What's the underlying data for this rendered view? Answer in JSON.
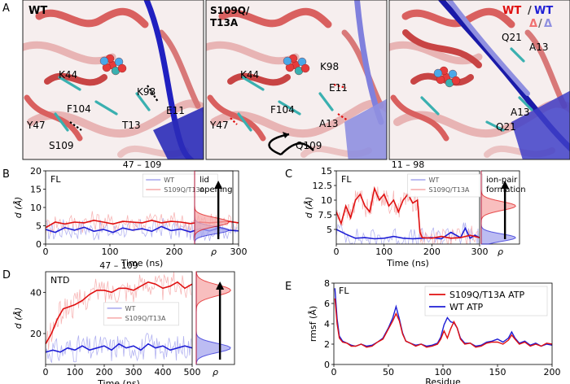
{
  "panel_letters": [
    "A",
    "B",
    "C",
    "D",
    "E"
  ],
  "panel_a": {
    "views": [
      {
        "title": "WT",
        "labels": [
          "K44",
          "K98",
          "E11",
          "F104",
          "Y47",
          "T13",
          "S109"
        ]
      },
      {
        "title_lines": [
          "S109Q/",
          "T13A"
        ],
        "labels": [
          "K44",
          "K98",
          "E11",
          "F104",
          "Y47",
          "A13",
          "Q109"
        ]
      },
      {
        "legend_top": [
          "WT",
          "/",
          "WT"
        ],
        "legend_bottom": [
          "Δ",
          "/",
          "Δ"
        ],
        "labels": [
          "Q21",
          "A13",
          "A13",
          "Q21"
        ]
      }
    ]
  },
  "colors": {
    "wt": "#1f1fd6",
    "wt_light": "#a6a6ee",
    "mut": "#e01010",
    "mut_light": "#f6a9a9",
    "protein_red": "#d9605f",
    "protein_blue": "#3b3bc4",
    "stick_cyan": "#3ab0b0"
  },
  "chart_data": [
    {
      "id": "B",
      "type": "line",
      "title": "47 – 109",
      "inset": "FL",
      "xlabel": "Time (ns)",
      "ylabel": "d (Å)",
      "xlim": [
        0,
        300
      ],
      "ylim": [
        0,
        20
      ],
      "xticks": [
        0,
        100,
        200,
        300
      ],
      "yticks": [
        0,
        5,
        10,
        15,
        20
      ],
      "legend": "top-center",
      "density_label": "ρ",
      "annotation": [
        "lid",
        "opening"
      ],
      "series": [
        {
          "name": "WT",
          "color": "#1f1fd6",
          "x": [
            0,
            15,
            30,
            45,
            60,
            75,
            90,
            105,
            120,
            135,
            150,
            165,
            180,
            195,
            210,
            225,
            240,
            255,
            270,
            285,
            300
          ],
          "y": [
            4,
            3.2,
            4.5,
            3.8,
            4.6,
            3.5,
            4,
            3.2,
            4.4,
            3.8,
            4.2,
            3.5,
            4.8,
            3.7,
            4.1,
            3.3,
            4.2,
            3.6,
            4.4,
            3.8,
            3.6
          ]
        },
        {
          "name": "S109Q/T13A",
          "color": "#e01010",
          "x": [
            0,
            15,
            30,
            45,
            60,
            75,
            90,
            105,
            120,
            135,
            150,
            165,
            180,
            195,
            210,
            225,
            240,
            255,
            270,
            285,
            300
          ],
          "y": [
            4.5,
            6,
            5.5,
            6,
            5.8,
            6.5,
            6,
            5.5,
            6.2,
            6,
            5.8,
            6.5,
            5.8,
            6.2,
            6,
            5.6,
            6,
            5.8,
            6,
            6.2,
            5.8
          ]
        }
      ]
    },
    {
      "id": "C",
      "type": "line",
      "title": "11 – 98",
      "inset": "FL",
      "xlabel": "Time (ns)",
      "ylabel": "d (Å)",
      "xlim": [
        0,
        300
      ],
      "ylim": [
        2.5,
        15
      ],
      "xticks": [
        0,
        100,
        200,
        300
      ],
      "yticks": [
        5.0,
        7.5,
        10.0,
        12.5,
        15.0
      ],
      "legend": "top-center",
      "density_label": "ρ",
      "annotation": [
        "ion-pair",
        "formation"
      ],
      "series": [
        {
          "name": "WT",
          "color": "#1f1fd6",
          "x": [
            0,
            20,
            40,
            60,
            80,
            100,
            120,
            140,
            160,
            180,
            200,
            220,
            240,
            260,
            270,
            280,
            290,
            300
          ],
          "y": [
            5,
            4.2,
            3.5,
            3.6,
            3.4,
            3.5,
            3.8,
            3.5,
            3.4,
            3.5,
            3.6,
            3.4,
            4.5,
            3.6,
            5.2,
            3.5,
            4,
            3.6
          ]
        },
        {
          "name": "S109Q/T13A",
          "color": "#e01010",
          "x": [
            0,
            10,
            20,
            30,
            40,
            50,
            60,
            70,
            80,
            90,
            100,
            110,
            120,
            130,
            140,
            150,
            160,
            170,
            175,
            180,
            200,
            220,
            240,
            260,
            280,
            300
          ],
          "y": [
            8,
            6,
            9,
            7,
            10,
            11,
            9,
            8,
            12,
            10,
            11,
            9,
            10,
            8,
            10,
            11,
            9.5,
            10,
            4.5,
            3.6,
            3.5,
            3.8,
            3.5,
            3.6,
            4,
            3.6
          ]
        }
      ]
    },
    {
      "id": "D",
      "type": "line",
      "title": "47 – 109",
      "inset": "NTD",
      "xlabel": "Time (ns)",
      "ylabel": "d (Å)",
      "xlim": [
        0,
        500
      ],
      "ylim": [
        5,
        50
      ],
      "xticks": [
        0,
        100,
        200,
        300,
        400,
        500
      ],
      "yticks": [
        20,
        40
      ],
      "legend": "center",
      "density_label": "ρ",
      "series": [
        {
          "name": "WT",
          "color": "#1f1fd6",
          "x": [
            0,
            25,
            50,
            75,
            100,
            125,
            150,
            175,
            200,
            225,
            250,
            275,
            300,
            325,
            350,
            375,
            400,
            425,
            450,
            475,
            500
          ],
          "y": [
            11,
            12,
            11,
            13,
            12,
            14,
            12,
            13,
            14,
            12,
            15,
            13,
            14,
            12,
            15,
            13,
            14,
            12,
            13,
            14,
            13
          ]
        },
        {
          "name": "S109Q/T13A",
          "color": "#e01010",
          "x": [
            0,
            20,
            40,
            60,
            80,
            100,
            125,
            150,
            175,
            200,
            225,
            250,
            275,
            300,
            325,
            350,
            375,
            400,
            425,
            450,
            475,
            500
          ],
          "y": [
            15,
            20,
            27,
            32,
            33,
            34,
            36,
            39,
            41,
            41,
            40,
            42,
            42,
            41,
            43,
            45,
            44,
            42,
            43,
            45,
            42,
            44
          ]
        }
      ]
    },
    {
      "id": "E",
      "type": "line",
      "inset": "FL",
      "xlabel": "Residue",
      "ylabel": "rmsf (Å)",
      "xlim": [
        0,
        200
      ],
      "ylim": [
        0,
        8
      ],
      "xticks": [
        0,
        50,
        100,
        150,
        200
      ],
      "yticks": [
        0,
        2,
        4,
        6,
        8
      ],
      "legend": "top-right",
      "series": [
        {
          "name": "S109Q/T13A ATP",
          "color": "#e01010",
          "x": [
            1,
            3,
            5,
            8,
            12,
            16,
            20,
            25,
            30,
            35,
            40,
            45,
            50,
            54,
            57,
            60,
            63,
            66,
            70,
            75,
            80,
            85,
            90,
            95,
            98,
            101,
            104,
            107,
            110,
            113,
            116,
            120,
            125,
            130,
            135,
            140,
            145,
            150,
            155,
            160,
            163,
            166,
            170,
            175,
            180,
            185,
            190,
            195,
            200
          ],
          "y": [
            6.5,
            4,
            2.6,
            2.2,
            2.1,
            1.8,
            1.8,
            2,
            1.7,
            1.8,
            2.2,
            2.5,
            3.5,
            4.3,
            5,
            4.3,
            3,
            2.3,
            2.1,
            1.8,
            2,
            1.7,
            1.8,
            2,
            2.5,
            3.3,
            2.6,
            3.5,
            4.2,
            3.6,
            2.5,
            2,
            2.1,
            1.7,
            1.8,
            2.1,
            2.2,
            2.2,
            2,
            2.4,
            2.9,
            2.5,
            2,
            2.2,
            1.8,
            2,
            1.8,
            2.1,
            2
          ]
        },
        {
          "name": "WT ATP",
          "color": "#1f1fd6",
          "x": [
            1,
            3,
            5,
            8,
            12,
            16,
            20,
            25,
            30,
            35,
            40,
            45,
            50,
            54,
            57,
            60,
            63,
            66,
            70,
            75,
            80,
            85,
            90,
            95,
            98,
            101,
            104,
            107,
            110,
            113,
            116,
            120,
            125,
            130,
            135,
            140,
            145,
            150,
            155,
            160,
            163,
            166,
            170,
            175,
            180,
            185,
            190,
            195,
            200
          ],
          "y": [
            7.5,
            4.5,
            2.8,
            2.3,
            2.1,
            1.9,
            1.8,
            2,
            1.8,
            1.9,
            2.2,
            2.6,
            3.6,
            4.6,
            5.7,
            4.5,
            3.1,
            2.3,
            2.1,
            1.9,
            2,
            1.8,
            1.9,
            2.1,
            2.7,
            3.9,
            4.6,
            4.2,
            4.1,
            3.6,
            2.6,
            2.1,
            2.1,
            1.8,
            1.9,
            2.2,
            2.3,
            2.5,
            2.2,
            2.6,
            3.2,
            2.6,
            2.1,
            2.3,
            1.9,
            2.1,
            1.8,
            2,
            1.9
          ]
        }
      ]
    }
  ]
}
